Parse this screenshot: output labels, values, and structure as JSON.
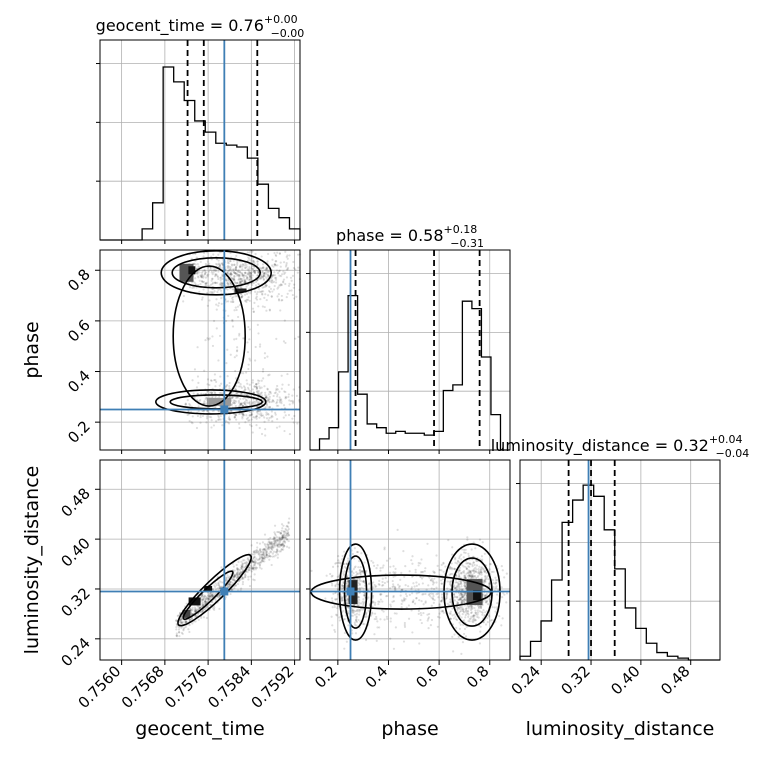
{
  "chart_data": {
    "type": "corner",
    "colors": {
      "truth": "#3f7fb5",
      "frame": "#000000",
      "grid": "#b0b0b0"
    },
    "parameters": [
      {
        "name": "geocent_time",
        "axis_label": "geocent_time",
        "title_main": "geocent_time = 0.76",
        "title_sup": "+0.00",
        "title_sub": "−0.00",
        "range": [
          0.7556,
          0.7593
        ],
        "ticks": [
          0.756,
          0.7568,
          0.7576,
          0.7584,
          0.7592
        ],
        "tick_labels": [
          "0.7560",
          "0.7568",
          "0.7576",
          "0.7584",
          "0.7592"
        ],
        "truth": 0.7579,
        "quantiles": [
          0.75722,
          0.75752,
          0.75851
        ],
        "hist": [
          0,
          0,
          0,
          0,
          0.06,
          0.2,
          0.93,
          0.85,
          0.75,
          0.64,
          0.58,
          0.52,
          0.51,
          0.5,
          0.44,
          0.3,
          0.17,
          0.12,
          0.06
        ]
      },
      {
        "name": "phase",
        "axis_label": "phase",
        "title_main": "phase = 0.58",
        "title_sup": "+0.18",
        "title_sub": "−0.31",
        "range": [
          0.09,
          0.88
        ],
        "ticks": [
          0.2,
          0.4,
          0.6,
          0.8
        ],
        "tick_labels": [
          "0.2",
          "0.4",
          "0.6",
          "0.8"
        ],
        "truth": 0.25,
        "quantiles": [
          0.27,
          0.58,
          0.76
        ],
        "hist": [
          0,
          0.06,
          0.12,
          0.42,
          0.83,
          0.3,
          0.14,
          0.12,
          0.09,
          0.1,
          0.09,
          0.09,
          0.08,
          0.1,
          0.32,
          0.35,
          0.8,
          0.76,
          0.5,
          0.19,
          0
        ]
      },
      {
        "name": "luminosity_distance",
        "axis_label": "luminosity_distance",
        "title_main": "luminosity_distance = 0.32",
        "title_sup": "+0.04",
        "title_sub": "−0.04",
        "range": [
          0.206,
          0.527
        ],
        "ticks": [
          0.24,
          0.32,
          0.4,
          0.48
        ],
        "tick_labels": [
          "0.24",
          "0.32",
          "0.40",
          "0.48"
        ],
        "truth": 0.316,
        "quantiles": [
          0.284,
          0.32,
          0.358
        ],
        "hist": [
          0.02,
          0.1,
          0.21,
          0.43,
          0.74,
          0.86,
          0.94,
          0.88,
          0.7,
          0.49,
          0.28,
          0.17,
          0.09,
          0.04,
          0.02,
          0.01,
          0,
          0,
          0
        ]
      }
    ],
    "pairs": [
      {
        "x": "geocent_time",
        "y": "phase"
      },
      {
        "x": "geocent_time",
        "y": "luminosity_distance"
      },
      {
        "x": "phase",
        "y": "luminosity_distance"
      }
    ],
    "grid": true
  }
}
